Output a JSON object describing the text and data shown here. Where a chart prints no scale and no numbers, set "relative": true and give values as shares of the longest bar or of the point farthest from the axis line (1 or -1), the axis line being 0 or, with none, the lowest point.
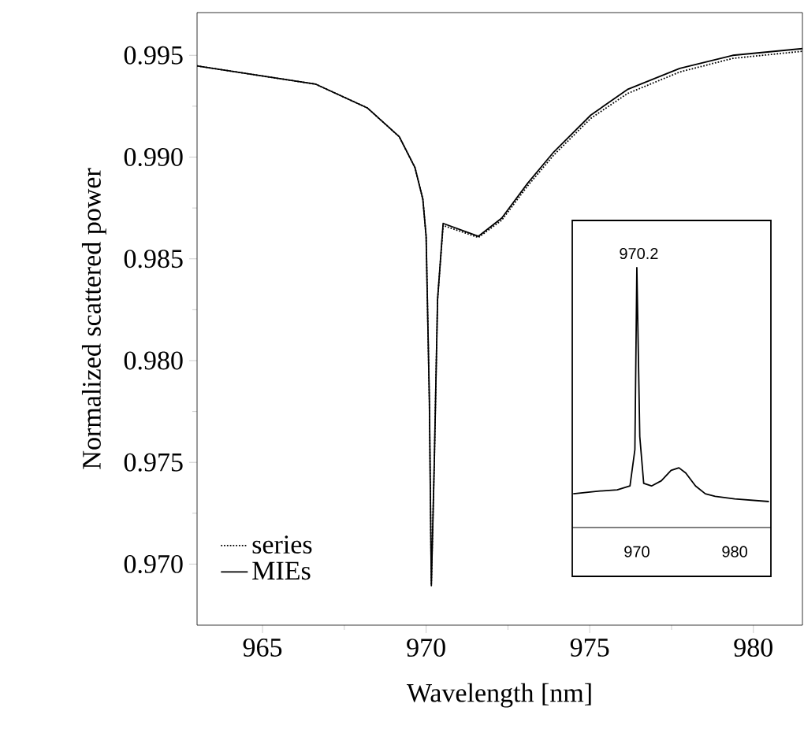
{
  "chart_data": [
    {
      "type": "line",
      "xlabel": "Wavelength [nm]",
      "ylabel": "Normalized scattered power",
      "xlim": [
        963,
        981.5
      ],
      "ylim": [
        0.967,
        0.9971
      ],
      "xticks": [
        965,
        970,
        975,
        980
      ],
      "yticks": [
        {
          "value": 0.97,
          "label": "0.970"
        },
        0.975,
        {
          "value": 0.98,
          "label": "0.980"
        },
        0.985,
        {
          "value": 0.99,
          "label": "0.990"
        },
        0.995
      ],
      "legend": "bottom left",
      "grid": false,
      "series": [
        {
          "name": "series",
          "color": "#000000",
          "line_style": "dotted",
          "x": [
            963.0,
            966.63,
            968.2,
            969.18,
            969.66,
            969.9,
            970.0,
            970.1,
            970.16,
            970.25,
            970.35,
            970.52,
            971.6,
            972.31,
            973.1,
            973.9,
            975.03,
            976.15,
            977.75,
            979.37,
            981.5
          ],
          "values": [
            0.99448,
            0.99358,
            0.99242,
            0.991,
            0.98948,
            0.98793,
            0.98611,
            0.978,
            0.96905,
            0.975,
            0.983,
            0.98664,
            0.98605,
            0.9869,
            0.98858,
            0.9901,
            0.9919,
            0.99312,
            0.99418,
            0.99485,
            0.9952
          ]
        },
        {
          "name": "MIEs",
          "color": "#000000",
          "line_style": "solid",
          "x": [
            963.0,
            966.63,
            968.2,
            969.18,
            969.66,
            969.9,
            970.0,
            970.1,
            970.16,
            970.25,
            970.35,
            970.52,
            971.6,
            972.31,
            973.1,
            973.9,
            975.03,
            976.15,
            977.75,
            979.37,
            981.5
          ],
          "values": [
            0.99448,
            0.99358,
            0.99242,
            0.991,
            0.98948,
            0.98793,
            0.98611,
            0.978,
            0.96894,
            0.975,
            0.983,
            0.98674,
            0.98611,
            0.987,
            0.98871,
            0.99025,
            0.99206,
            0.99332,
            0.99436,
            0.995,
            0.99533
          ]
        }
      ]
    },
    {
      "type": "line",
      "relative": true,
      "xlim": [
        963.4,
        983.7
      ],
      "xticks": [
        970,
        980
      ],
      "tick_labels": "x",
      "annotations": [
        {
          "text": "970.2",
          "x": 970.2,
          "y": 1.0
        }
      ],
      "series": [
        {
          "color": "#000000",
          "line_style": "solid",
          "x": [
            963.5,
            966,
            968,
            969.3,
            969.8,
            970.0,
            970.3,
            970.7,
            971.5,
            972.5,
            973.5,
            974.3,
            975,
            976,
            977,
            978,
            980,
            983.5
          ],
          "values": [
            0.13,
            0.14,
            0.145,
            0.16,
            0.3,
            1.0,
            0.35,
            0.17,
            0.16,
            0.18,
            0.22,
            0.23,
            0.21,
            0.16,
            0.13,
            0.12,
            0.11,
            0.1
          ]
        }
      ]
    }
  ]
}
